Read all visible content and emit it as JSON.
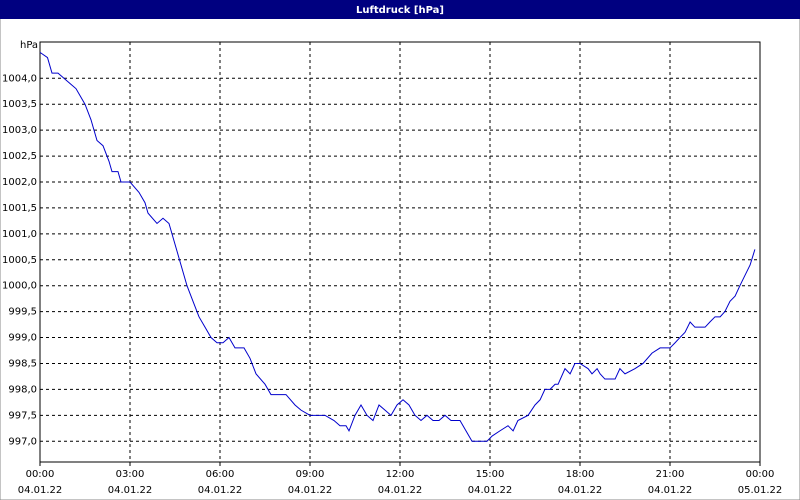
{
  "chart_data": {
    "type": "line",
    "title": "Luftdruck [hPa]",
    "ylabel": "hPa",
    "x": [
      0,
      0.25,
      0.4,
      0.6,
      1.0,
      1.2,
      1.5,
      1.7,
      1.9,
      2.1,
      2.3,
      2.4,
      2.6,
      2.7,
      3.0,
      3.3,
      3.5,
      3.6,
      3.9,
      4.1,
      4.3,
      4.5,
      4.7,
      4.9,
      5.1,
      5.3,
      5.5,
      5.7,
      5.9,
      6.1,
      6.3,
      6.5,
      6.8,
      7.0,
      7.2,
      7.5,
      7.7,
      8.0,
      8.2,
      8.5,
      8.7,
      9.0,
      9.5,
      9.8,
      10.0,
      10.2,
      10.3,
      10.5,
      10.7,
      10.9,
      11.1,
      11.3,
      11.5,
      11.7,
      11.9,
      12.1,
      12.3,
      12.5,
      12.7,
      12.9,
      13.1,
      13.3,
      13.5,
      13.7,
      13.9,
      14.0,
      14.2,
      14.4,
      14.9,
      15.07,
      15.33,
      15.6,
      15.77,
      15.93,
      16.27,
      16.5,
      16.67,
      16.83,
      17.0,
      17.17,
      17.27,
      17.5,
      17.67,
      17.83,
      18.0,
      18.27,
      18.4,
      18.57,
      18.67,
      18.83,
      19.17,
      19.33,
      19.5,
      19.83,
      20.1,
      20.4,
      20.67,
      21.0,
      21.17,
      21.33,
      21.5,
      21.67,
      21.83,
      22.17,
      22.33,
      22.5,
      22.67,
      22.83,
      23.0,
      23.17,
      23.33,
      23.5,
      23.67,
      23.83
    ],
    "series": [
      {
        "name": "Luftdruck",
        "color": "#0000cc",
        "values": [
          1004.5,
          1004.4,
          1004.1,
          1004.1,
          1003.9,
          1003.8,
          1003.5,
          1003.2,
          1002.8,
          1002.7,
          1002.4,
          1002.2,
          1002.2,
          1002.0,
          1002.0,
          1001.8,
          1001.6,
          1001.4,
          1001.2,
          1001.3,
          1001.2,
          1000.8,
          1000.4,
          1000.0,
          999.7,
          999.4,
          999.2,
          999.0,
          998.9,
          998.9,
          999.0,
          998.8,
          998.8,
          998.6,
          998.3,
          998.1,
          997.9,
          997.9,
          997.9,
          997.7,
          997.6,
          997.5,
          997.5,
          997.4,
          997.3,
          997.3,
          997.2,
          997.5,
          997.7,
          997.5,
          997.4,
          997.7,
          997.6,
          997.5,
          997.7,
          997.8,
          997.7,
          997.5,
          997.4,
          997.5,
          997.4,
          997.4,
          997.5,
          997.4,
          997.4,
          997.4,
          997.2,
          997.0,
          997.0,
          997.1,
          997.2,
          997.3,
          997.2,
          997.4,
          997.5,
          997.7,
          997.8,
          998.0,
          998.0,
          998.1,
          998.1,
          998.4,
          998.3,
          998.5,
          998.5,
          998.4,
          998.3,
          998.4,
          998.3,
          998.2,
          998.2,
          998.4,
          998.3,
          998.4,
          998.5,
          998.7,
          998.8,
          998.8,
          998.9,
          999.0,
          999.1,
          999.3,
          999.2,
          999.2,
          999.3,
          999.4,
          999.4,
          999.5,
          999.7,
          999.8,
          1000.0,
          1000.2,
          1000.4,
          1000.7
        ]
      }
    ],
    "xlim": [
      0,
      24
    ],
    "xticks": [
      {
        "value": 0,
        "label": "00:00",
        "sublabel": "04.01.22"
      },
      {
        "value": 3,
        "label": "03:00",
        "sublabel": "04.01.22"
      },
      {
        "value": 6,
        "label": "06:00",
        "sublabel": "04.01.22"
      },
      {
        "value": 9,
        "label": "09:00",
        "sublabel": "04.01.22"
      },
      {
        "value": 12,
        "label": "12:00",
        "sublabel": "04.01.22"
      },
      {
        "value": 15,
        "label": "15:00",
        "sublabel": "04.01.22"
      },
      {
        "value": 18,
        "label": "18:00",
        "sublabel": "04.01.22"
      },
      {
        "value": 21,
        "label": "21:00",
        "sublabel": "04.01.22"
      },
      {
        "value": 24,
        "label": "00:00",
        "sublabel": "05.01.22"
      }
    ],
    "ylim": [
      996.6,
      1004.7
    ],
    "yticks": [
      {
        "value": 997,
        "label": "997,0"
      },
      {
        "value": 997.5,
        "label": "997,5"
      },
      {
        "value": 998,
        "label": "998,0"
      },
      {
        "value": 998.5,
        "label": "998,5"
      },
      {
        "value": 999,
        "label": "999,0"
      },
      {
        "value": 999.5,
        "label": "999,5"
      },
      {
        "value": 1000,
        "label": "1000,0"
      },
      {
        "value": 1000.5,
        "label": "1000,5"
      },
      {
        "value": 1001,
        "label": "1001,0"
      },
      {
        "value": 1001.5,
        "label": "1001,5"
      },
      {
        "value": 1002,
        "label": "1002,0"
      },
      {
        "value": 1002.5,
        "label": "1002,5"
      },
      {
        "value": 1003,
        "label": "1003,0"
      },
      {
        "value": 1003.5,
        "label": "1003,5"
      },
      {
        "value": 1004,
        "label": "1004,0"
      }
    ],
    "grid": true
  }
}
